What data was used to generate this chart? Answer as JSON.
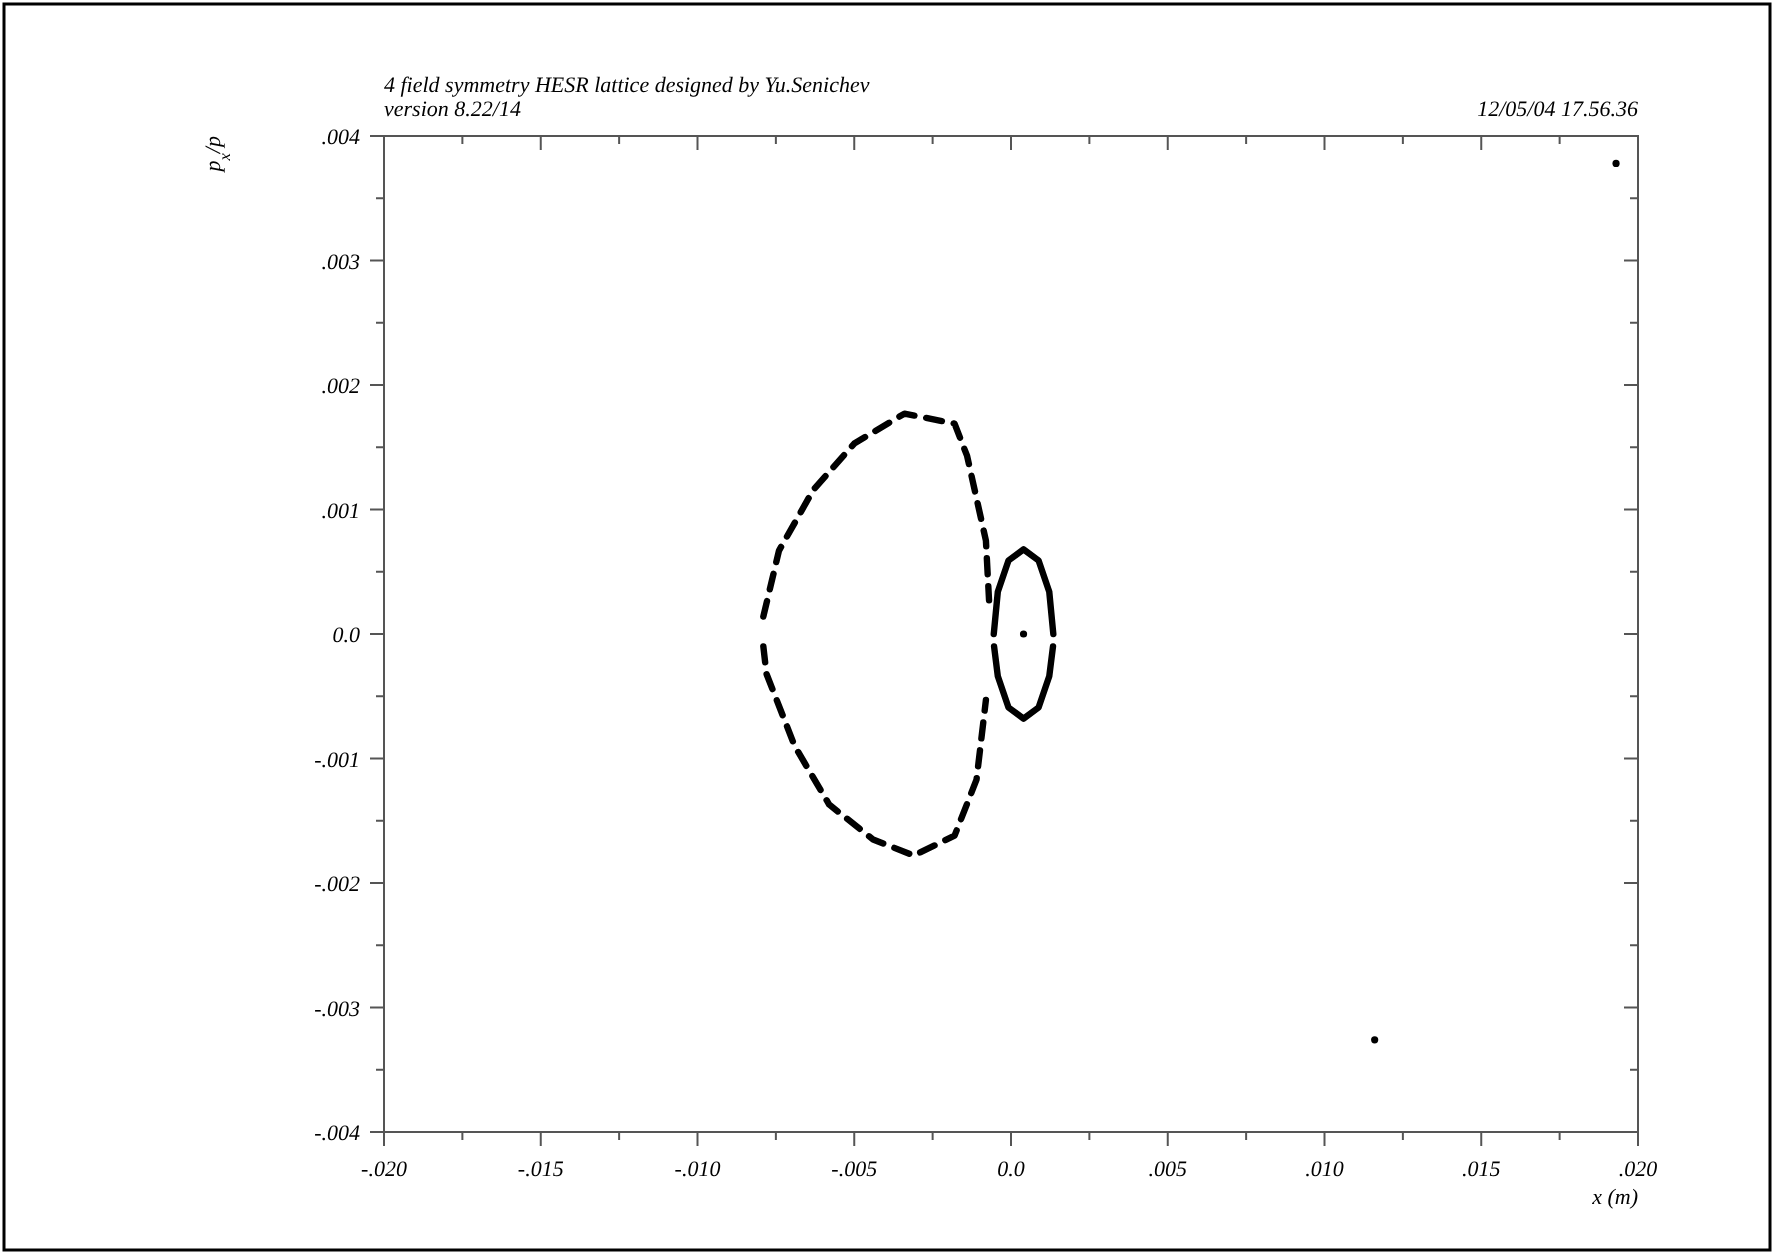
{
  "chart_data": {
    "type": "line",
    "title": "4 field symmetry HESR lattice designed by Yu.Senichev",
    "subtitle": "version 8.22/14",
    "annotations": [
      "12/05/04  17.56.36"
    ],
    "xlabel": "x (m)",
    "ylabel": "p$_{x}$/p",
    "xlim": [
      -0.02,
      0.02
    ],
    "ylim": [
      -0.004,
      0.004
    ],
    "xticks": [
      {
        "value": -0.02,
        "label": "-.020"
      },
      {
        "value": -0.0175,
        "label": null
      },
      {
        "value": -0.015,
        "label": "-.015"
      },
      {
        "value": -0.0125,
        "label": null
      },
      {
        "value": -0.01,
        "label": "-.010"
      },
      {
        "value": -0.0075,
        "label": null
      },
      {
        "value": -0.005,
        "label": "-.005"
      },
      {
        "value": -0.0025,
        "label": null
      },
      {
        "value": 0,
        "label": "0.0"
      },
      {
        "value": 0.0025,
        "label": null
      },
      {
        "value": 0.005,
        "label": ".005"
      },
      {
        "value": 0.0075,
        "label": null
      },
      {
        "value": 0.01,
        "label": ".010"
      },
      {
        "value": 0.0125,
        "label": null
      },
      {
        "value": 0.015,
        "label": ".015"
      },
      {
        "value": 0.0175,
        "label": null
      },
      {
        "value": 0.02,
        "label": ".020"
      }
    ],
    "yticks": [
      {
        "value": -0.004,
        "label": "-.004"
      },
      {
        "value": -0.0035,
        "label": null
      },
      {
        "value": -0.003,
        "label": "-.003"
      },
      {
        "value": -0.0025,
        "label": null
      },
      {
        "value": -0.002,
        "label": "-.002"
      },
      {
        "value": -0.0015,
        "label": null
      },
      {
        "value": -0.001,
        "label": "-.001"
      },
      {
        "value": -0.0005,
        "label": null
      },
      {
        "value": 0,
        "label": "0.0"
      },
      {
        "value": 0.0005,
        "label": null
      },
      {
        "value": 0.001,
        "label": ".001"
      },
      {
        "value": 0.0015,
        "label": null
      },
      {
        "value": 0.002,
        "label": ".002"
      },
      {
        "value": 0.0025,
        "label": null
      },
      {
        "value": 0.003,
        "label": ".003"
      },
      {
        "value": 0.0035,
        "label": null
      },
      {
        "value": 0.004,
        "label": ".004"
      }
    ],
    "grid": false,
    "series": [
      {
        "color": "#000000",
        "line_style": "dashed",
        "marker": "none",
        "x": [
          -0.0079,
          -0.0074,
          -0.0063,
          -0.005,
          -0.0034,
          -0.0018,
          -0.0014,
          -0.0008,
          -0.0007
        ],
        "values": [
          0.00014,
          0.00067,
          0.00116,
          0.00153,
          0.00177,
          0.00169,
          0.00143,
          0.00075,
          0.00027
        ]
      },
      {
        "color": "#000000",
        "line_style": "dashed",
        "marker": "none",
        "x": [
          -0.0079,
          -0.0078,
          -0.0069,
          -0.0058,
          -0.0044,
          -0.0031,
          -0.0018,
          -0.0011,
          -0.0008
        ],
        "values": [
          -0.0001,
          -0.00032,
          -0.0009,
          -0.00137,
          -0.00165,
          -0.00178,
          -0.00162,
          -0.00117,
          -0.00053
        ]
      },
      {
        "color": "#000000",
        "line_style": "solid",
        "marker": "none",
        "x": [
          -0.00055,
          -0.00042,
          -8e-05,
          0.0004,
          0.00088,
          0.00122,
          0.00135
        ],
        "values": [
          0,
          0.00034,
          0.00059,
          0.00068,
          0.00059,
          0.00034,
          0
        ]
      },
      {
        "color": "#000000",
        "line_style": "solid",
        "marker": "none",
        "x": [
          -0.00054,
          -0.00042,
          -8e-05,
          0.0004,
          0.00088,
          0.00122,
          0.00134
        ],
        "values": [
          -0.0001,
          -0.00034,
          -0.00059,
          -0.00068,
          -0.00059,
          -0.00034,
          -0.0001
        ]
      },
      {
        "type": "scatter",
        "color": "#000000",
        "marker": "circle",
        "x": [
          0.0004,
          0.0193,
          0.0116
        ],
        "values": [
          0,
          0.00378,
          -0.00326
        ]
      }
    ]
  }
}
